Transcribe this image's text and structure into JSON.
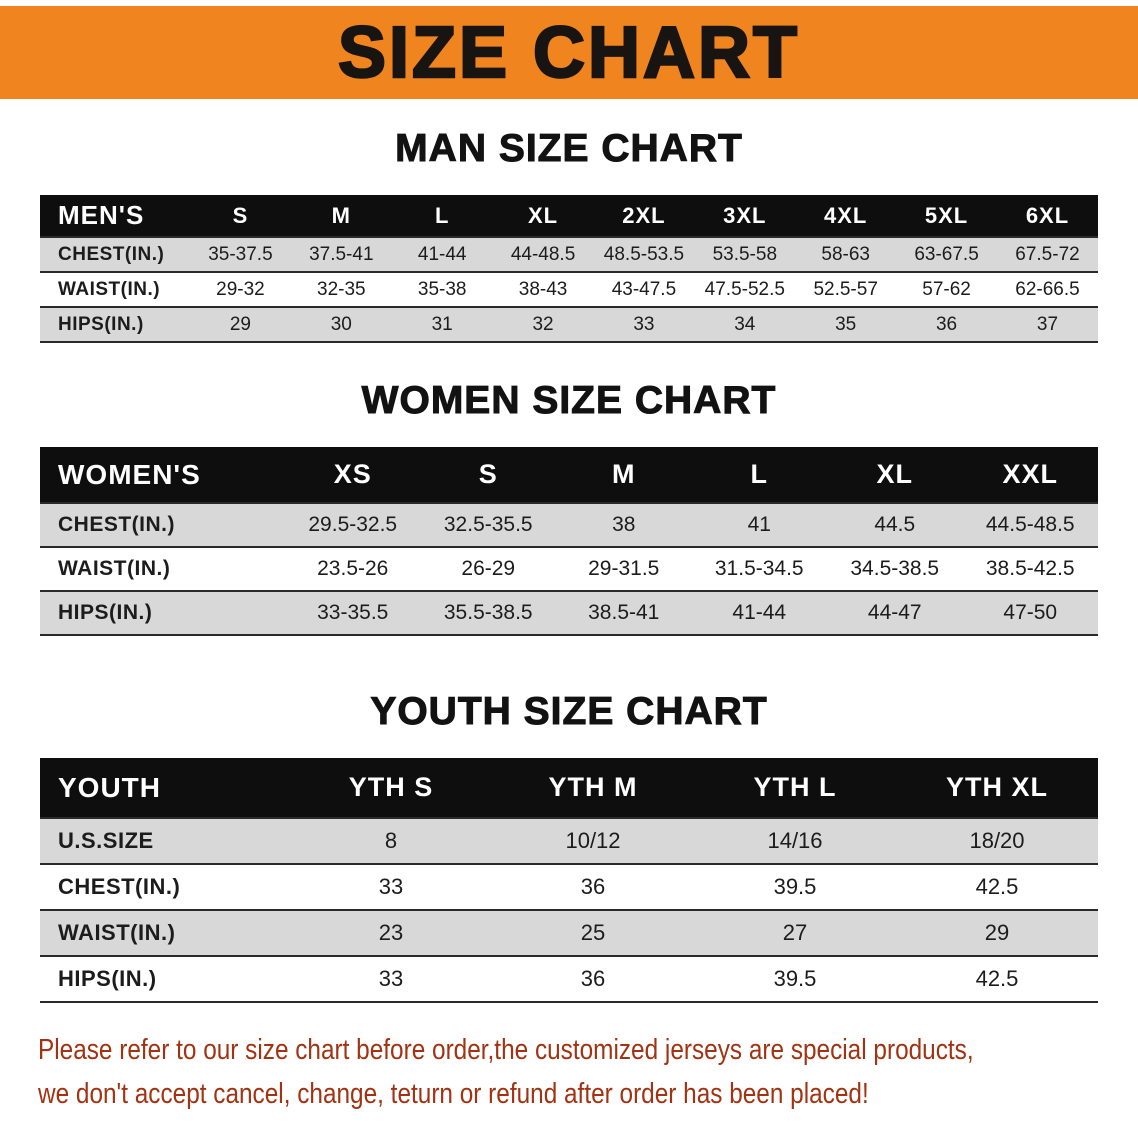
{
  "banner": {
    "title": "SIZE CHART"
  },
  "colors": {
    "banner_bg": "#f0841f",
    "table_header_bg": "#0e0e0e",
    "row_shade": "#d8d8d8",
    "footer_text": "#a23312"
  },
  "sections": [
    {
      "id": "men",
      "title": "MAN SIZE CHART",
      "header": [
        "MEN'S",
        "S",
        "M",
        "L",
        "XL",
        "2XL",
        "3XL",
        "4XL",
        "5XL",
        "6XL"
      ],
      "rows": [
        {
          "label": "CHEST(IN.)",
          "values": [
            "35-37.5",
            "37.5-41",
            "41-44",
            "44-48.5",
            "48.5-53.5",
            "53.5-58",
            "58-63",
            "63-67.5",
            "67.5-72"
          ]
        },
        {
          "label": "WAIST(IN.)",
          "values": [
            "29-32",
            "32-35",
            "35-38",
            "38-43",
            "43-47.5",
            "47.5-52.5",
            "52.5-57",
            "57-62",
            "62-66.5"
          ]
        },
        {
          "label": "HIPS(IN.)",
          "values": [
            "29",
            "30",
            "31",
            "32",
            "33",
            "34",
            "35",
            "36",
            "37"
          ]
        }
      ]
    },
    {
      "id": "women",
      "title": "WOMEN SIZE CHART",
      "header": [
        "WOMEN'S",
        "XS",
        "S",
        "M",
        "L",
        "XL",
        "XXL"
      ],
      "rows": [
        {
          "label": "CHEST(IN.)",
          "values": [
            "29.5-32.5",
            "32.5-35.5",
            "38",
            "41",
            "44.5",
            "44.5-48.5"
          ]
        },
        {
          "label": "WAIST(IN.)",
          "values": [
            "23.5-26",
            "26-29",
            "29-31.5",
            "31.5-34.5",
            "34.5-38.5",
            "38.5-42.5"
          ]
        },
        {
          "label": "HIPS(IN.)",
          "values": [
            "33-35.5",
            "35.5-38.5",
            "38.5-41",
            "41-44",
            "44-47",
            "47-50"
          ]
        }
      ]
    },
    {
      "id": "youth",
      "title": "YOUTH SIZE CHART",
      "header": [
        "YOUTH",
        "YTH S",
        "YTH M",
        "YTH L",
        "YTH XL"
      ],
      "rows": [
        {
          "label": "U.S.SIZE",
          "values": [
            "8",
            "10/12",
            "14/16",
            "18/20"
          ]
        },
        {
          "label": "CHEST(IN.)",
          "values": [
            "33",
            "36",
            "39.5",
            "42.5"
          ]
        },
        {
          "label": "WAIST(IN.)",
          "values": [
            "23",
            "25",
            "27",
            "29"
          ]
        },
        {
          "label": "HIPS(IN.)",
          "values": [
            "33",
            "36",
            "39.5",
            "42.5"
          ]
        }
      ]
    }
  ],
  "footer": {
    "line1": "Please refer to our size chart before order,the customized jerseys are special products,",
    "line2": "we don't accept cancel, change, teturn or refund after order has been placed!"
  }
}
